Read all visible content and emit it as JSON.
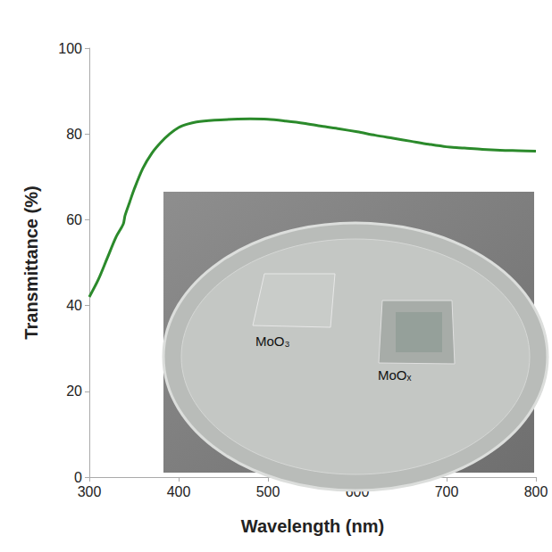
{
  "chart_data": {
    "type": "line",
    "x_label": "Wavelength (nm)",
    "y_label": "Transmittance (%)",
    "x": [
      300,
      310,
      320,
      330,
      338,
      340,
      345,
      350,
      360,
      370,
      380,
      390,
      400,
      410,
      420,
      440,
      460,
      480,
      500,
      520,
      540,
      560,
      580,
      600,
      620,
      640,
      660,
      680,
      700,
      720,
      740,
      760,
      780,
      800
    ],
    "values": [
      42,
      46,
      51,
      56,
      59,
      61,
      64,
      67,
      72,
      75.5,
      78,
      80,
      81.5,
      82.3,
      82.8,
      83.2,
      83.4,
      83.5,
      83.4,
      83.0,
      82.5,
      81.8,
      81.2,
      80.5,
      79.7,
      79.0,
      78.3,
      77.6,
      77.0,
      76.7,
      76.4,
      76.2,
      76.1,
      76.0
    ],
    "color": "#2b8a2b",
    "xlim": [
      300,
      800
    ],
    "xticks": [
      300,
      400,
      500,
      600,
      700,
      800
    ],
    "ylim": [
      0,
      100
    ],
    "yticks": [
      0,
      20,
      40,
      60,
      80,
      100
    ],
    "grid": false,
    "annotations": [
      "MoO₃",
      "MoOₓ"
    ]
  }
}
